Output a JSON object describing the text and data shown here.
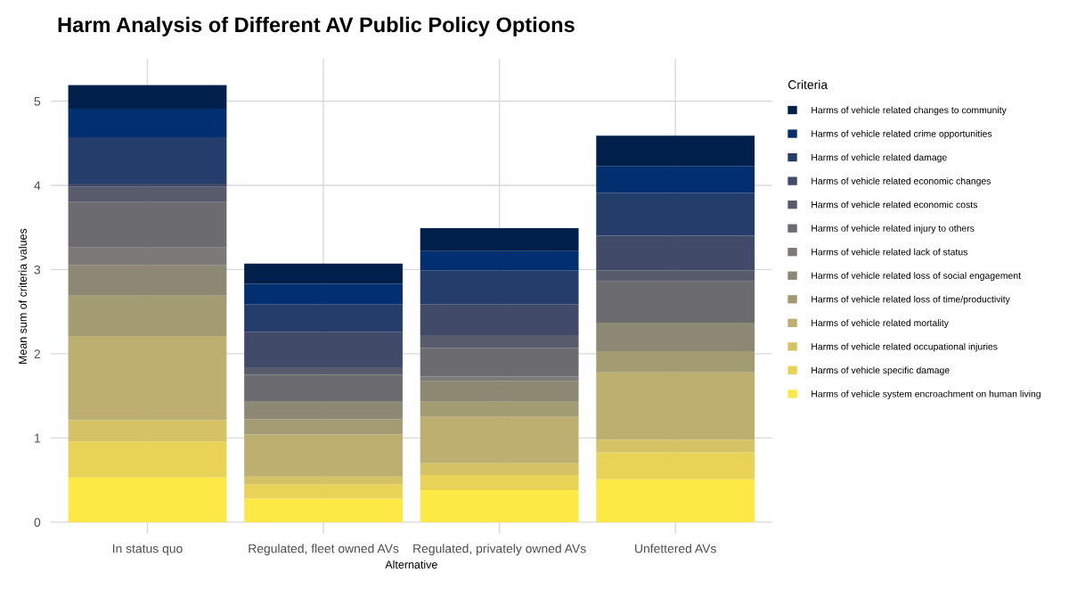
{
  "chart_data": {
    "type": "bar",
    "stacked": true,
    "title": "Harm Analysis of Different AV Public Policy Options",
    "xlabel": "Alternative",
    "ylabel": "Mean sum of criteria values",
    "legend_title": "Criteria",
    "legend": "right",
    "grid": true,
    "categories": [
      "In status quo",
      "Regulated, fleet owned AVs",
      "Regulated, privately owned AVs",
      "Unfettered AVs"
    ],
    "ylim": [
      -0.14,
      5.5
    ],
    "yticks": [
      0,
      1,
      2,
      3,
      4,
      5
    ],
    "series": [
      {
        "name": "Harms of vehicle system encroachment on human living",
        "color": "#fde945",
        "values": [
          0.53,
          0.28,
          0.38,
          0.51
        ]
      },
      {
        "name": "Harms of vehicle specific damage",
        "color": "#e9d356",
        "values": [
          0.43,
          0.17,
          0.18,
          0.32
        ]
      },
      {
        "name": "Harms of vehicle related occupational injuries",
        "color": "#d5c265",
        "values": [
          0.25,
          0.09,
          0.14,
          0.15
        ]
      },
      {
        "name": "Harms of vehicle related mortality",
        "color": "#bcaf6f",
        "values": [
          1.0,
          0.5,
          0.55,
          0.8
        ]
      },
      {
        "name": "Harms of vehicle related loss of time/productivity",
        "color": "#a39b72",
        "values": [
          0.48,
          0.18,
          0.18,
          0.25
        ]
      },
      {
        "name": "Harms of vehicle related loss of social engagement",
        "color": "#8c8873",
        "values": [
          0.36,
          0.21,
          0.25,
          0.34
        ]
      },
      {
        "name": "Harms of vehicle related lack of status",
        "color": "#7b7a76",
        "values": [
          0.21,
          0,
          0.05,
          0
        ]
      },
      {
        "name": "Harms of vehicle related injury to others",
        "color": "#6b6b70",
        "values": [
          0.54,
          0.32,
          0.34,
          0.49
        ]
      },
      {
        "name": "Harms of vehicle related economic costs",
        "color": "#575b6c",
        "values": [
          0.18,
          0.09,
          0.15,
          0.13
        ]
      },
      {
        "name": "Harms of vehicle related economic changes",
        "color": "#414b69",
        "values": [
          0.04,
          0.42,
          0.37,
          0.41
        ]
      },
      {
        "name": "Harms of vehicle related damage",
        "color": "#243d6b",
        "values": [
          0.55,
          0.33,
          0.4,
          0.51
        ]
      },
      {
        "name": "Harms of vehicle related crime opportunities",
        "color": "#012f6f",
        "values": [
          0.34,
          0.24,
          0.23,
          0.32
        ]
      },
      {
        "name": "Harms of vehicle related changes to community",
        "color": "#00204c",
        "values": [
          0.28,
          0.24,
          0.27,
          0.36
        ]
      }
    ]
  }
}
